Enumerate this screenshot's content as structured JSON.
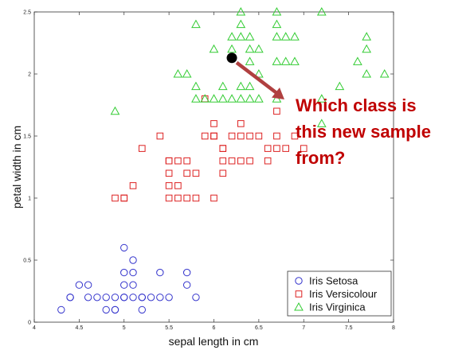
{
  "chart_data": {
    "type": "scatter",
    "xlabel": "sepal length in cm",
    "ylabel": "petal width in cm",
    "xlim": [
      4,
      8
    ],
    "ylim": [
      0,
      2.5
    ],
    "xticks": [
      "4",
      "4.5",
      "5",
      "5.5",
      "6",
      "6.5",
      "7",
      "7.5",
      "8"
    ],
    "yticks": [
      "0",
      "0.5",
      "1",
      "1.5",
      "2",
      "2.5"
    ],
    "grid": false,
    "legend_position": "bottom-right",
    "series": [
      {
        "name": "Iris Setosa",
        "marker": "circle",
        "color": "#3333cc",
        "points": [
          [
            4.3,
            0.1
          ],
          [
            4.4,
            0.2
          ],
          [
            4.4,
            0.2
          ],
          [
            4.5,
            0.3
          ],
          [
            4.6,
            0.2
          ],
          [
            4.6,
            0.3
          ],
          [
            4.7,
            0.2
          ],
          [
            4.8,
            0.2
          ],
          [
            4.8,
            0.1
          ],
          [
            4.9,
            0.2
          ],
          [
            4.9,
            0.1
          ],
          [
            5.0,
            0.2
          ],
          [
            5.0,
            0.3
          ],
          [
            5.0,
            0.4
          ],
          [
            5.0,
            0.6
          ],
          [
            5.1,
            0.2
          ],
          [
            5.1,
            0.3
          ],
          [
            5.1,
            0.4
          ],
          [
            5.1,
            0.5
          ],
          [
            5.2,
            0.2
          ],
          [
            5.2,
            0.1
          ],
          [
            5.3,
            0.2
          ],
          [
            5.4,
            0.2
          ],
          [
            5.4,
            0.4
          ],
          [
            5.5,
            0.2
          ],
          [
            5.7,
            0.3
          ],
          [
            5.7,
            0.4
          ],
          [
            5.8,
            0.2
          ],
          [
            4.9,
            0.1
          ],
          [
            5.0,
            0.2
          ],
          [
            5.2,
            0.2
          ]
        ]
      },
      {
        "name": "Iris Versicolour",
        "marker": "square",
        "color": "#dd2222",
        "points": [
          [
            4.9,
            1.0
          ],
          [
            5.0,
            1.0
          ],
          [
            5.0,
            1.0
          ],
          [
            5.1,
            1.1
          ],
          [
            5.2,
            1.4
          ],
          [
            5.4,
            1.5
          ],
          [
            5.5,
            1.0
          ],
          [
            5.5,
            1.1
          ],
          [
            5.5,
            1.2
          ],
          [
            5.5,
            1.3
          ],
          [
            5.5,
            1.3
          ],
          [
            5.6,
            1.0
          ],
          [
            5.6,
            1.1
          ],
          [
            5.6,
            1.3
          ],
          [
            5.7,
            1.0
          ],
          [
            5.7,
            1.2
          ],
          [
            5.7,
            1.3
          ],
          [
            5.8,
            1.0
          ],
          [
            5.8,
            1.2
          ],
          [
            5.9,
            1.5
          ],
          [
            5.9,
            1.8
          ],
          [
            6.0,
            1.0
          ],
          [
            6.0,
            1.5
          ],
          [
            6.0,
            1.6
          ],
          [
            6.0,
            1.5
          ],
          [
            6.1,
            1.2
          ],
          [
            6.1,
            1.3
          ],
          [
            6.1,
            1.4
          ],
          [
            6.2,
            1.3
          ],
          [
            6.2,
            1.5
          ],
          [
            6.3,
            1.3
          ],
          [
            6.3,
            1.5
          ],
          [
            6.3,
            1.6
          ],
          [
            6.4,
            1.3
          ],
          [
            6.4,
            1.5
          ],
          [
            6.5,
            1.5
          ],
          [
            6.6,
            1.3
          ],
          [
            6.6,
            1.4
          ],
          [
            6.7,
            1.4
          ],
          [
            6.7,
            1.5
          ],
          [
            6.8,
            1.4
          ],
          [
            6.9,
            1.5
          ],
          [
            7.0,
            1.4
          ],
          [
            6.1,
            1.4
          ],
          [
            6.7,
            1.7
          ]
        ]
      },
      {
        "name": "Iris Virginica",
        "marker": "triangle",
        "color": "#33cc33",
        "points": [
          [
            4.9,
            1.7
          ],
          [
            5.6,
            2.0
          ],
          [
            5.7,
            2.0
          ],
          [
            5.8,
            1.8
          ],
          [
            5.8,
            1.9
          ],
          [
            5.8,
            2.4
          ],
          [
            5.9,
            1.8
          ],
          [
            6.0,
            1.8
          ],
          [
            6.1,
            1.8
          ],
          [
            6.1,
            1.9
          ],
          [
            6.2,
            1.8
          ],
          [
            6.3,
            1.8
          ],
          [
            6.3,
            1.9
          ],
          [
            6.3,
            2.4
          ],
          [
            6.3,
            2.5
          ],
          [
            6.4,
            1.8
          ],
          [
            6.4,
            1.9
          ],
          [
            6.4,
            2.1
          ],
          [
            6.4,
            2.2
          ],
          [
            6.4,
            2.3
          ],
          [
            6.5,
            1.8
          ],
          [
            6.5,
            2.0
          ],
          [
            6.5,
            2.2
          ],
          [
            6.7,
            1.8
          ],
          [
            6.7,
            2.1
          ],
          [
            6.7,
            2.3
          ],
          [
            6.7,
            2.4
          ],
          [
            6.7,
            2.5
          ],
          [
            6.8,
            2.1
          ],
          [
            6.8,
            2.3
          ],
          [
            6.9,
            2.1
          ],
          [
            6.9,
            2.3
          ],
          [
            7.2,
            1.8
          ],
          [
            7.2,
            2.5
          ],
          [
            7.2,
            1.6
          ],
          [
            7.4,
            1.9
          ],
          [
            7.6,
            2.1
          ],
          [
            7.7,
            2.0
          ],
          [
            7.7,
            2.2
          ],
          [
            7.7,
            2.3
          ],
          [
            7.9,
            2.0
          ],
          [
            6.2,
            2.3
          ],
          [
            6.0,
            2.2
          ],
          [
            6.3,
            2.3
          ],
          [
            6.2,
            2.2
          ]
        ]
      }
    ],
    "new_sample": {
      "x": 6.2,
      "y": 2.13,
      "color": "#000000"
    },
    "annotation": {
      "lines": [
        "Which class is",
        "this new sample",
        "from?"
      ],
      "color": "#c00000",
      "arrow_color": "#b04040"
    }
  }
}
